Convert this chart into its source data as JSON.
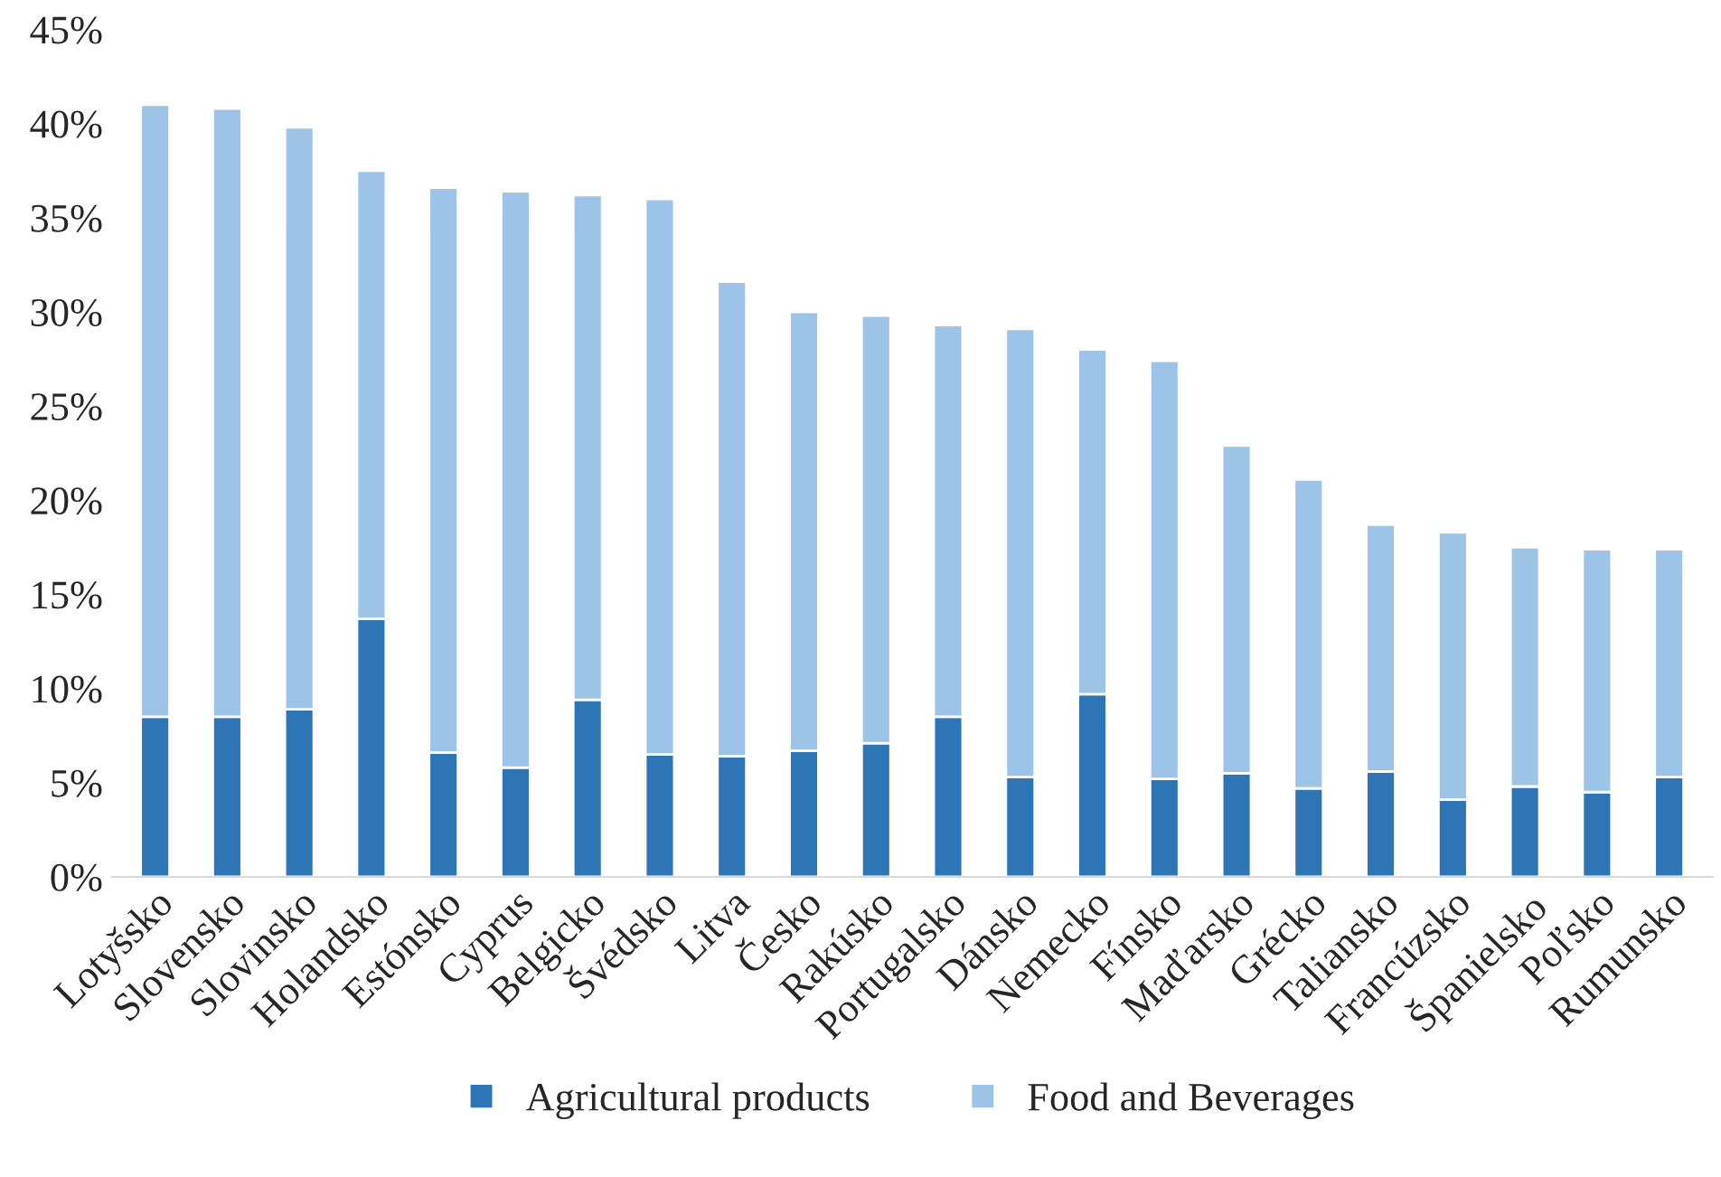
{
  "chart_data": {
    "type": "bar",
    "stacked": true,
    "legend": "bottom",
    "grid": false,
    "categories": [
      "Lotyšsko",
      "Slovensko",
      "Slovinsko",
      "Holandsko",
      "Estónsko",
      "Cyprus",
      "Belgicko",
      "Švédsko",
      "Litva",
      "Česko",
      "Rakúsko",
      "Portugalsko",
      "Dánsko",
      "Nemecko",
      "Fínsko",
      "Maďarsko",
      "Grécko",
      "Taliansko",
      "Francúzsko",
      "Španielsko",
      "Poľsko",
      "Rumunsko"
    ],
    "series": [
      {
        "name": "Agricultural products",
        "color": "#2e75b6",
        "values": [
          8.5,
          8.5,
          8.9,
          13.7,
          6.6,
          5.8,
          9.4,
          6.5,
          6.4,
          6.7,
          7.1,
          8.5,
          5.3,
          9.7,
          5.2,
          5.5,
          4.7,
          5.6,
          4.1,
          4.8,
          4.5,
          5.3
        ]
      },
      {
        "name": "Food and Beverages",
        "color": "#9dc3e6",
        "values": [
          32.5,
          32.3,
          30.9,
          23.8,
          30.0,
          30.6,
          26.8,
          29.5,
          25.2,
          23.3,
          22.7,
          20.8,
          23.8,
          18.3,
          22.2,
          17.4,
          16.4,
          13.1,
          14.2,
          12.7,
          12.9,
          12.1
        ]
      }
    ],
    "ylim": [
      0,
      45
    ],
    "yticks": [
      {
        "value": 0,
        "label": "0%"
      },
      {
        "value": 5,
        "label": "5%"
      },
      {
        "value": 10,
        "label": "10%"
      },
      {
        "value": 15,
        "label": "15%"
      },
      {
        "value": 20,
        "label": "20%"
      },
      {
        "value": 25,
        "label": "25%"
      },
      {
        "value": 30,
        "label": "30%"
      },
      {
        "value": 35,
        "label": "35%"
      },
      {
        "value": 40,
        "label": "40%"
      },
      {
        "value": 45,
        "label": "45%"
      }
    ]
  }
}
